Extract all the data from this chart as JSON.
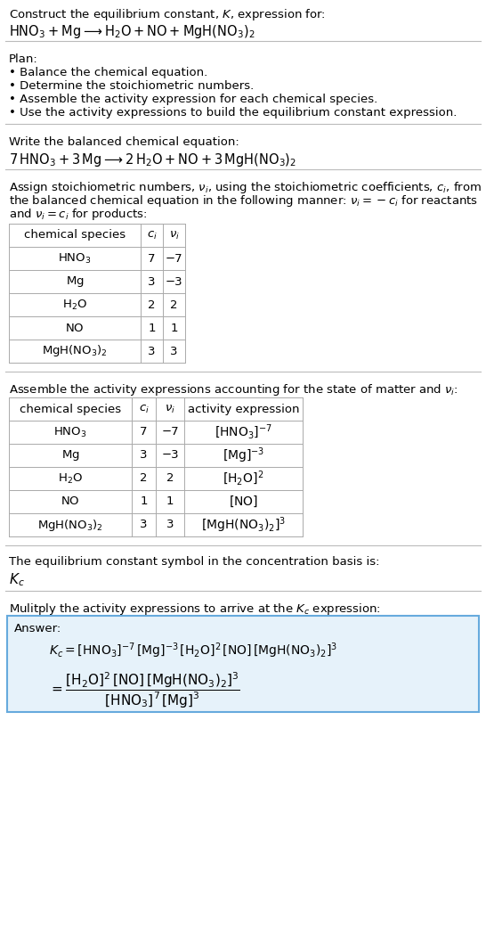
{
  "bg_color": "#ffffff",
  "section1_title": "Construct the equilibrium constant, $K$, expression for:",
  "section1_eq": "$\\mathrm{HNO_3 + Mg} \\longrightarrow \\mathrm{H_2O + NO + MgH(NO_3)_2}$",
  "section2_title": "Plan:",
  "section2_lines": [
    "• Balance the chemical equation.",
    "• Determine the stoichiometric numbers.",
    "• Assemble the activity expression for each chemical species.",
    "• Use the activity expressions to build the equilibrium constant expression."
  ],
  "section3_title": "Write the balanced chemical equation:",
  "section3_eq": "$\\mathrm{7\\,HNO_3 + 3\\,Mg} \\longrightarrow \\mathrm{2\\,H_2O + NO + 3\\,MgH(NO_3)_2}$",
  "section4_title_lines": [
    "Assign stoichiometric numbers, $\\nu_i$, using the stoichiometric coefficients, $c_i$, from",
    "the balanced chemical equation in the following manner: $\\nu_i = -c_i$ for reactants",
    "and $\\nu_i = c_i$ for products:"
  ],
  "table1_headers": [
    "chemical species",
    "$c_i$",
    "$\\nu_i$"
  ],
  "table1_rows": [
    [
      "$\\mathrm{HNO_3}$",
      "7",
      "−7"
    ],
    [
      "$\\mathrm{Mg}$",
      "3",
      "−3"
    ],
    [
      "$\\mathrm{H_2O}$",
      "2",
      "2"
    ],
    [
      "$\\mathrm{NO}$",
      "1",
      "1"
    ],
    [
      "$\\mathrm{MgH(NO_3)_2}$",
      "3",
      "3"
    ]
  ],
  "section5_title": "Assemble the activity expressions accounting for the state of matter and $\\nu_i$:",
  "table2_headers": [
    "chemical species",
    "$c_i$",
    "$\\nu_i$",
    "activity expression"
  ],
  "table2_rows": [
    [
      "$\\mathrm{HNO_3}$",
      "7",
      "−7",
      "$[\\mathrm{HNO_3}]^{-7}$"
    ],
    [
      "$\\mathrm{Mg}$",
      "3",
      "−3",
      "$[\\mathrm{Mg}]^{-3}$"
    ],
    [
      "$\\mathrm{H_2O}$",
      "2",
      "2",
      "$[\\mathrm{H_2O}]^{2}$"
    ],
    [
      "$\\mathrm{NO}$",
      "1",
      "1",
      "$[\\mathrm{NO}]$"
    ],
    [
      "$\\mathrm{MgH(NO_3)_2}$",
      "3",
      "3",
      "$[\\mathrm{MgH(NO_3)_2}]^{3}$"
    ]
  ],
  "section6_title": "The equilibrium constant symbol in the concentration basis is:",
  "section6_symbol": "$K_c$",
  "section7_title": "Mulitply the activity expressions to arrive at the $K_c$ expression:",
  "answer_label": "Answer:",
  "answer_line1": "$K_c = [\\mathrm{HNO_3}]^{-7}\\,[\\mathrm{Mg}]^{-3}\\,[\\mathrm{H_2O}]^{2}\\,[\\mathrm{NO}]\\,[\\mathrm{MgH(NO_3)_2}]^{3}$",
  "answer_line2": "$= \\dfrac{[\\mathrm{H_2O}]^{2}\\,[\\mathrm{NO}]\\,[\\mathrm{MgH(NO_3)_2}]^{3}}{[\\mathrm{HNO_3}]^{7}\\,[\\mathrm{Mg}]^{3}}$",
  "hline_color": "#bbbbbb",
  "table_line_color": "#aaaaaa",
  "answer_box_edge": "#66aadd",
  "answer_box_face": "#e6f2fa"
}
